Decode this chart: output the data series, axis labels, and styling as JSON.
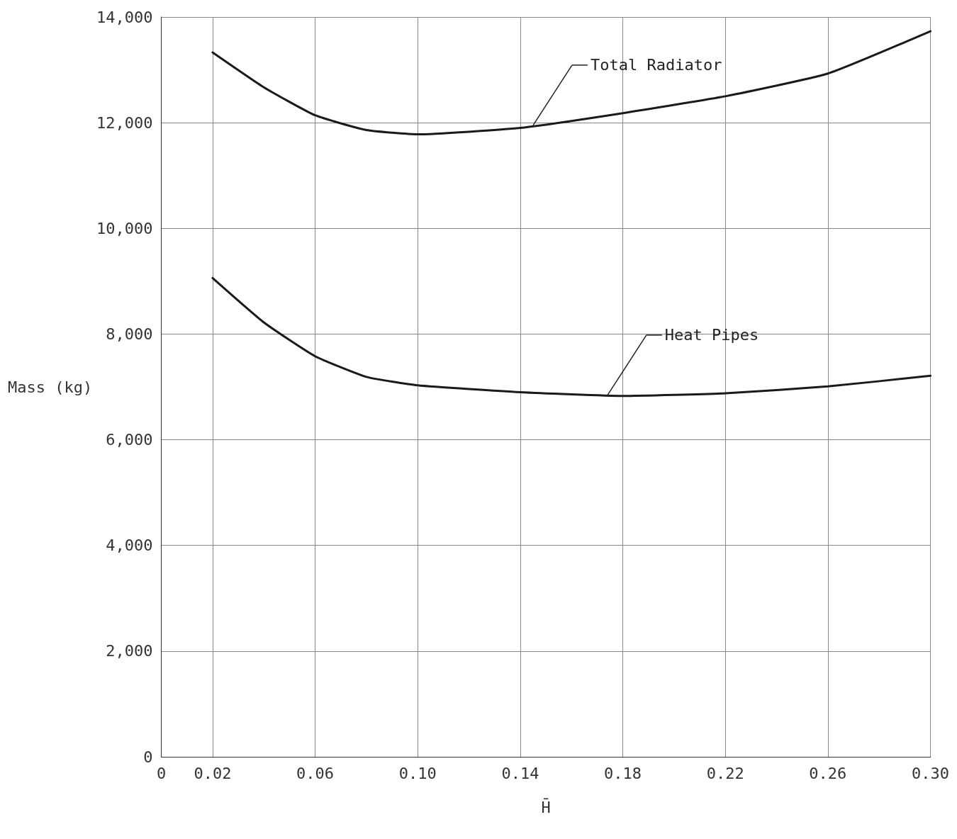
{
  "chart_data": {
    "type": "line",
    "xlabel": "H̄",
    "ylabel": "Mass (kg)",
    "x": [
      0.02,
      0.04,
      0.06,
      0.08,
      0.1,
      0.14,
      0.18,
      0.22,
      0.26,
      0.3
    ],
    "series": [
      {
        "color": "#1a1a1a",
        "values": [
          13330,
          12670,
          12140,
          11860,
          11780,
          11900,
          12180,
          12500,
          12930,
          13730
        ]
      },
      {
        "color": "#1a1a1a",
        "values": [
          9060,
          8220,
          7580,
          7190,
          7030,
          6900,
          6830,
          6880,
          7010,
          7210
        ]
      }
    ],
    "xlim": [
      0,
      0.3
    ],
    "xticks": [
      0,
      0.02,
      0.06,
      {
        "value": 0.1,
        "label": "0.10"
      },
      0.14,
      0.18,
      0.22,
      0.26,
      {
        "value": 0.3,
        "label": "0.30"
      }
    ],
    "ylim": [
      0,
      14000
    ],
    "yticks": [
      0,
      {
        "value": 2000,
        "label": "2,000"
      },
      {
        "value": 4000,
        "label": "4,000"
      },
      {
        "value": 6000,
        "label": "6,000"
      },
      {
        "value": 8000,
        "label": "8,000"
      },
      {
        "value": 10000,
        "label": "10,000"
      },
      {
        "value": 12000,
        "label": "12,000"
      },
      {
        "value": 14000,
        "label": "14,000"
      }
    ],
    "grid": true,
    "line_style": "solid",
    "marker": "none",
    "annotations": [
      {
        "text": "Total Radiator",
        "x": 0.145,
        "y": 11950
      },
      {
        "text": "Heat Pipes",
        "x": 0.174,
        "y": 6840
      }
    ]
  }
}
